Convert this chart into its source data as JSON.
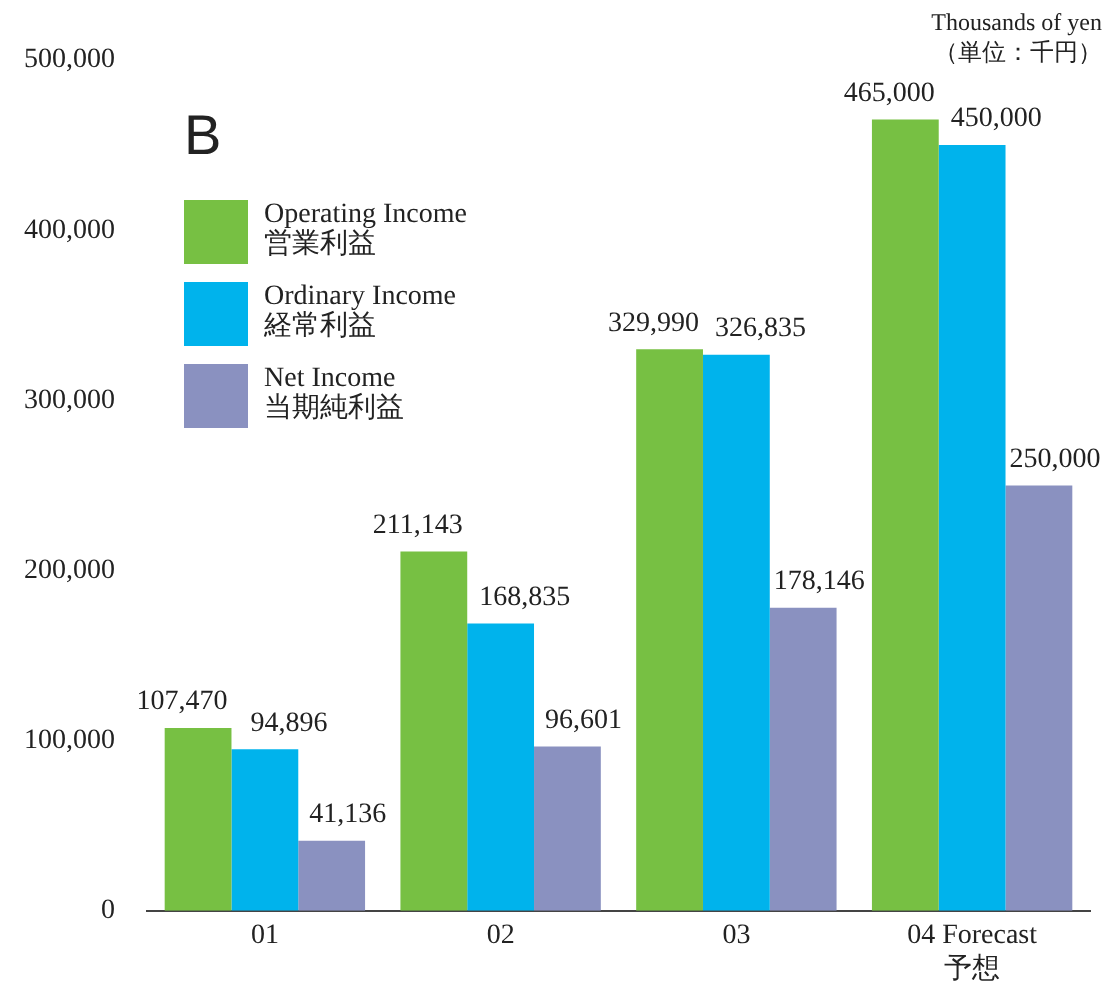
{
  "chart_data": {
    "type": "bar",
    "categories": [
      "01",
      "02",
      "03",
      "04 Forecast\n予想"
    ],
    "series": [
      {
        "name": "Operating Income\n営業利益",
        "color": "#77c043",
        "values": [
          107470,
          211143,
          329990,
          465000
        ],
        "value_labels": [
          "107,470",
          "211,143",
          "329,990",
          "465,000"
        ]
      },
      {
        "name": "Ordinary Income\n経常利益",
        "color": "#00b3ec",
        "values": [
          94896,
          168835,
          326835,
          450000
        ],
        "value_labels": [
          "94,896",
          "168,835",
          "326,835",
          "450,000"
        ]
      },
      {
        "name": "Net Income\n当期純利益",
        "color": "#8a91c0",
        "values": [
          41136,
          96601,
          178146,
          250000
        ],
        "value_labels": [
          "41,136",
          "96,601",
          "178,146",
          "250,000"
        ]
      }
    ],
    "ylim": [
      0,
      500000
    ],
    "yticks": [
      {
        "value": 0,
        "label": "0"
      },
      {
        "value": 100000,
        "label": "100,000"
      },
      {
        "value": 200000,
        "label": "200,000"
      },
      {
        "value": 300000,
        "label": "300,000"
      },
      {
        "value": 400000,
        "label": "400,000"
      },
      {
        "value": 500000,
        "label": "500,000"
      }
    ],
    "grid": false,
    "legend": "top left",
    "annotations": [
      "B",
      "Thousands of yen",
      "（単位：千円）"
    ]
  }
}
